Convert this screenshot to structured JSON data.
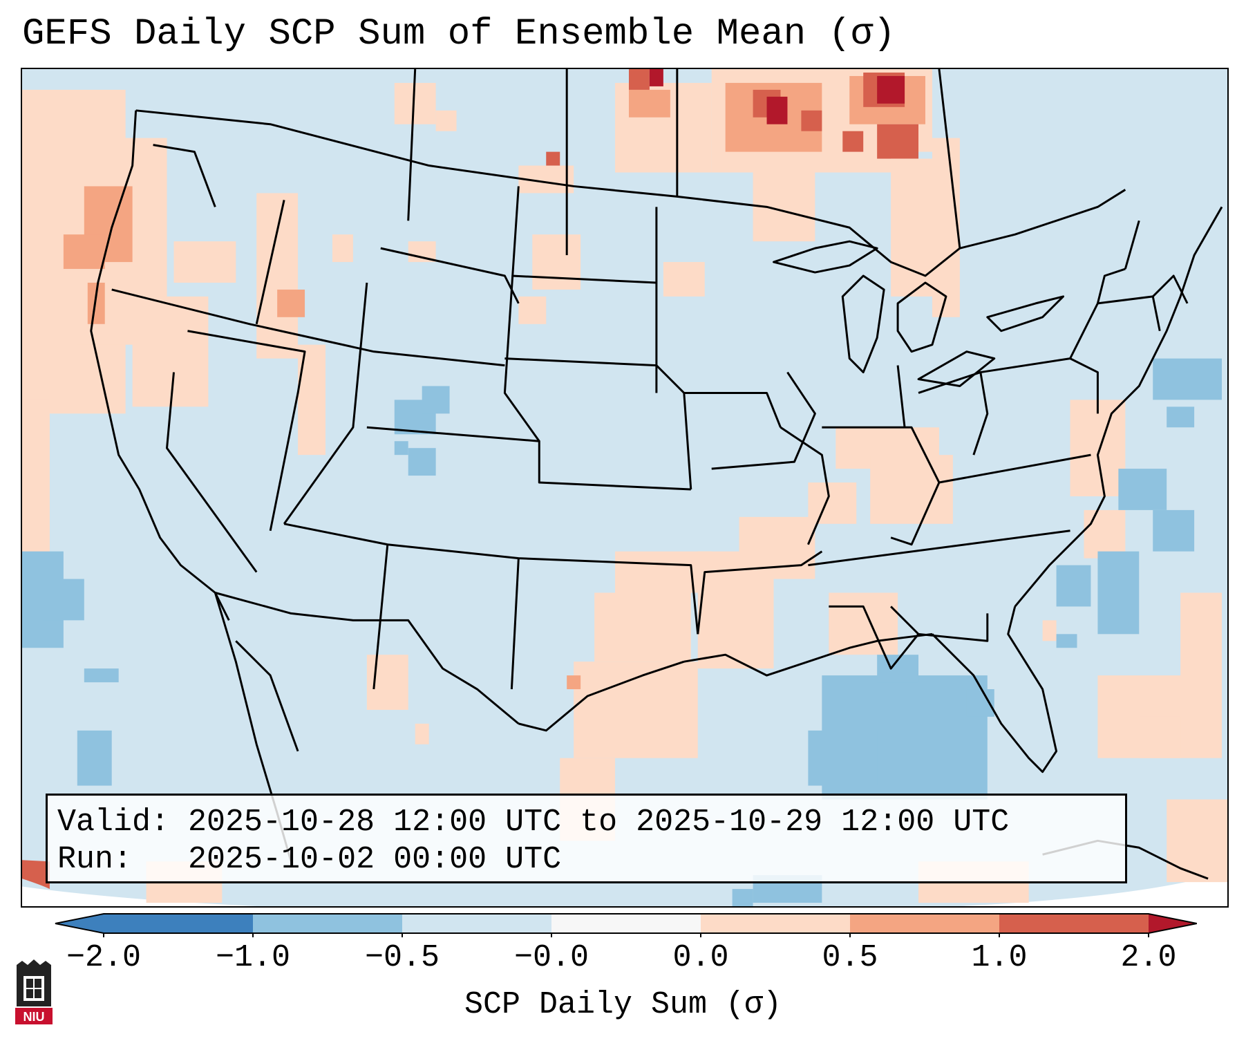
{
  "title": "GEFS Daily SCP Sum of Ensemble Mean (σ)",
  "info": {
    "valid_line": "Valid: 2025-10-28 12:00 UTC to 2025-10-29 12:00 UTC",
    "run_line": "Run:   2025-10-02 00:00 UTC"
  },
  "colorbar": {
    "label": "SCP Daily Sum (σ)",
    "ticks": [
      "−2.0",
      "−1.0",
      "−0.5",
      "−0.0",
      "0.0",
      "0.5",
      "1.0",
      "2.0"
    ],
    "extend": "both",
    "colors": [
      "#3d80bd",
      "#8fc2df",
      "#d1e5f0",
      "#f7f7f7",
      "#fddbc7",
      "#f4a582",
      "#d6604d",
      "#b2182b"
    ]
  },
  "map": {
    "background_value_color": "#d1e5f0",
    "positive_anomaly_region": "West Coast, northern plains, Great Lakes, Midwest",
    "strongest_region": "Ontario / northern Minnesota"
  },
  "logo": {
    "text": "NIU"
  }
}
